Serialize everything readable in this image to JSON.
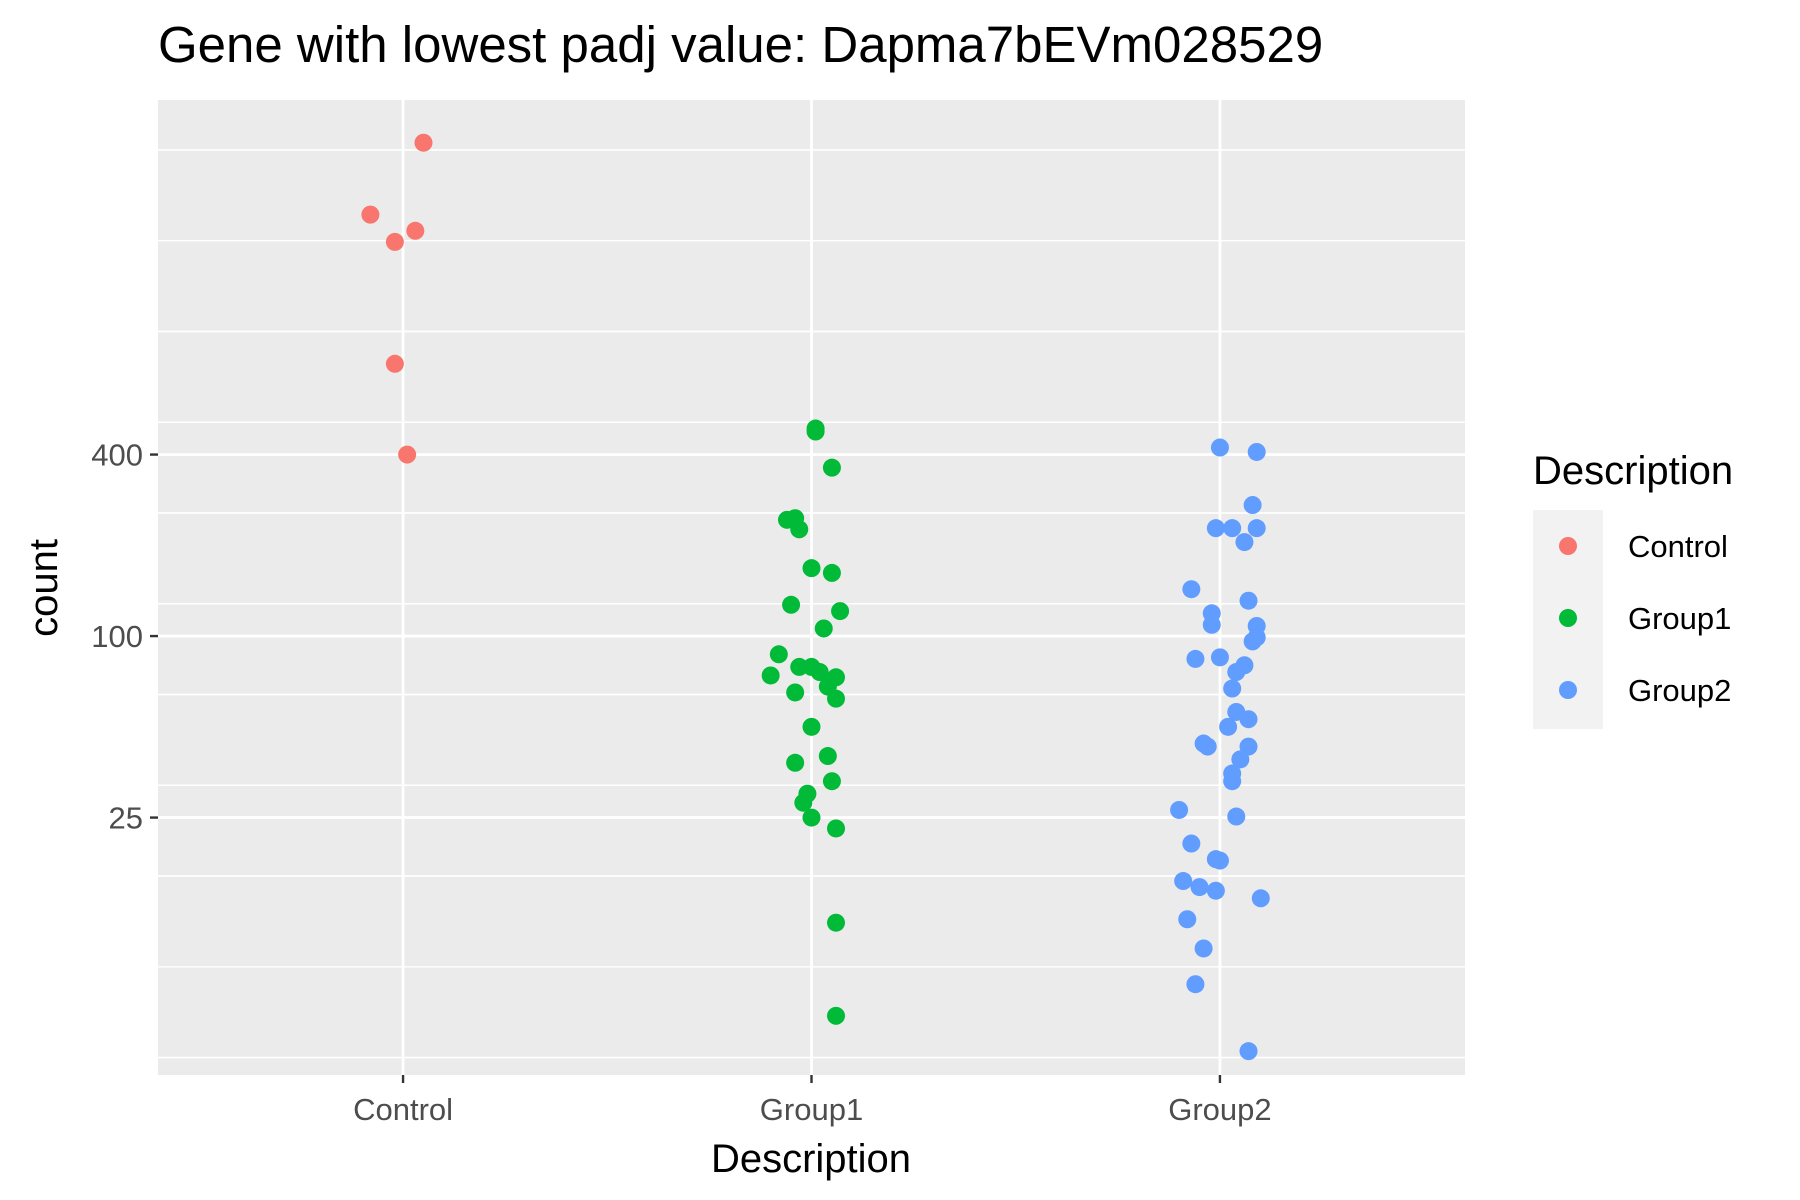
{
  "chart_data": {
    "type": "scatter",
    "title": "Gene with lowest padj value: Dapma7bEVm028529",
    "xlabel": "Description",
    "ylabel": "count",
    "y_scale": "log4",
    "ylim": [
      3.5,
      6000
    ],
    "y_ticks": [
      25,
      100,
      400
    ],
    "y_tick_labels": [
      "25",
      "100",
      "400"
    ],
    "categories": [
      "Control",
      "Group1",
      "Group2"
    ],
    "grid": true,
    "legend": {
      "title": "Description",
      "position": "right",
      "entries": [
        "Control",
        "Group1",
        "Group2"
      ]
    },
    "colors": {
      "Control": "#F8766D",
      "Group1": "#00BA38",
      "Group2": "#619CFF",
      "panel": "#EBEBEB",
      "grid": "#FFFFFF"
    },
    "series": [
      {
        "name": "Control",
        "points": [
          {
            "jitter": 0.05,
            "y": 4330
          },
          {
            "jitter": -0.08,
            "y": 2500
          },
          {
            "jitter": 0.03,
            "y": 2210
          },
          {
            "jitter": -0.02,
            "y": 2030
          },
          {
            "jitter": -0.02,
            "y": 800
          },
          {
            "jitter": 0.01,
            "y": 400
          }
        ]
      },
      {
        "name": "Group1",
        "points": [
          {
            "jitter": 0.01,
            "y": 488
          },
          {
            "jitter": 0.01,
            "y": 477
          },
          {
            "jitter": 0.05,
            "y": 362
          },
          {
            "jitter": -0.06,
            "y": 243
          },
          {
            "jitter": -0.04,
            "y": 246
          },
          {
            "jitter": -0.03,
            "y": 226
          },
          {
            "jitter": 0.0,
            "y": 168
          },
          {
            "jitter": 0.05,
            "y": 162
          },
          {
            "jitter": -0.05,
            "y": 127
          },
          {
            "jitter": 0.07,
            "y": 121
          },
          {
            "jitter": 0.03,
            "y": 106
          },
          {
            "jitter": -0.08,
            "y": 87
          },
          {
            "jitter": -0.03,
            "y": 79
          },
          {
            "jitter": 0.0,
            "y": 79
          },
          {
            "jitter": 0.02,
            "y": 76
          },
          {
            "jitter": 0.06,
            "y": 73
          },
          {
            "jitter": -0.1,
            "y": 74
          },
          {
            "jitter": 0.04,
            "y": 68
          },
          {
            "jitter": -0.04,
            "y": 65
          },
          {
            "jitter": 0.06,
            "y": 62
          },
          {
            "jitter": 0.0,
            "y": 50
          },
          {
            "jitter": 0.04,
            "y": 40
          },
          {
            "jitter": -0.04,
            "y": 38
          },
          {
            "jitter": 0.05,
            "y": 33
          },
          {
            "jitter": -0.01,
            "y": 30
          },
          {
            "jitter": -0.02,
            "y": 28
          },
          {
            "jitter": 0.0,
            "y": 25
          },
          {
            "jitter": 0.06,
            "y": 23
          },
          {
            "jitter": 0.06,
            "y": 11.2
          },
          {
            "jitter": 0.06,
            "y": 5.5
          }
        ]
      },
      {
        "name": "Group2",
        "points": [
          {
            "jitter": 0.0,
            "y": 422
          },
          {
            "jitter": 0.09,
            "y": 408
          },
          {
            "jitter": 0.08,
            "y": 272
          },
          {
            "jitter": -0.01,
            "y": 228
          },
          {
            "jitter": 0.03,
            "y": 228
          },
          {
            "jitter": 0.09,
            "y": 228
          },
          {
            "jitter": 0.06,
            "y": 205
          },
          {
            "jitter": -0.07,
            "y": 143
          },
          {
            "jitter": 0.07,
            "y": 131
          },
          {
            "jitter": -0.02,
            "y": 119
          },
          {
            "jitter": 0.09,
            "y": 108
          },
          {
            "jitter": -0.02,
            "y": 109
          },
          {
            "jitter": 0.09,
            "y": 99
          },
          {
            "jitter": 0.08,
            "y": 96
          },
          {
            "jitter": -0.06,
            "y": 84
          },
          {
            "jitter": 0.0,
            "y": 85
          },
          {
            "jitter": 0.06,
            "y": 80
          },
          {
            "jitter": 0.04,
            "y": 76
          },
          {
            "jitter": 0.03,
            "y": 67
          },
          {
            "jitter": 0.04,
            "y": 56
          },
          {
            "jitter": 0.07,
            "y": 53
          },
          {
            "jitter": 0.02,
            "y": 50
          },
          {
            "jitter": -0.04,
            "y": 44
          },
          {
            "jitter": -0.03,
            "y": 43
          },
          {
            "jitter": 0.07,
            "y": 43
          },
          {
            "jitter": 0.05,
            "y": 39
          },
          {
            "jitter": 0.03,
            "y": 35
          },
          {
            "jitter": 0.03,
            "y": 33
          },
          {
            "jitter": -0.1,
            "y": 26.5
          },
          {
            "jitter": 0.04,
            "y": 25.2
          },
          {
            "jitter": -0.07,
            "y": 20.5
          },
          {
            "jitter": -0.01,
            "y": 18.2
          },
          {
            "jitter": 0.0,
            "y": 18
          },
          {
            "jitter": -0.09,
            "y": 15.4
          },
          {
            "jitter": -0.05,
            "y": 14.7
          },
          {
            "jitter": -0.01,
            "y": 14.3
          },
          {
            "jitter": 0.1,
            "y": 13.5
          },
          {
            "jitter": -0.08,
            "y": 11.5
          },
          {
            "jitter": -0.04,
            "y": 9.2
          },
          {
            "jitter": -0.06,
            "y": 7.0
          },
          {
            "jitter": 0.07,
            "y": 4.2
          }
        ]
      }
    ]
  }
}
